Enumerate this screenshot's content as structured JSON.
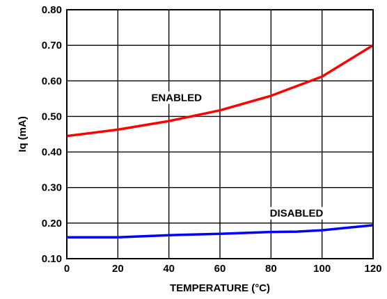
{
  "chart_data": {
    "type": "line",
    "xlabel": "TEMPERATURE (°C)",
    "ylabel": "Iq (mA)",
    "xlim": [
      0,
      120
    ],
    "ylim": [
      0.1,
      0.8
    ],
    "grid": true,
    "legend": "none",
    "x_ticks": [
      0,
      20,
      40,
      60,
      80,
      100,
      120
    ],
    "y_ticks": [
      0.1,
      0.2,
      0.3,
      0.4,
      0.5,
      0.6,
      0.7,
      0.8
    ],
    "x_tick_labels": [
      "0",
      "20",
      "40",
      "60",
      "80",
      "100",
      "120"
    ],
    "y_tick_labels": [
      "0.10",
      "0.20",
      "0.30",
      "0.40",
      "0.50",
      "0.60",
      "0.70",
      "0.80"
    ],
    "series": [
      {
        "label": "ENABLED",
        "color": "#ff0000",
        "label_at": {
          "x": 43,
          "y": 0.545
        },
        "points": [
          {
            "x": 0,
            "y": 0.445
          },
          {
            "x": 20,
            "y": 0.463
          },
          {
            "x": 40,
            "y": 0.487
          },
          {
            "x": 60,
            "y": 0.517
          },
          {
            "x": 80,
            "y": 0.558
          },
          {
            "x": 100,
            "y": 0.612
          },
          {
            "x": 120,
            "y": 0.7
          }
        ]
      },
      {
        "label": "DISABLED",
        "color": "#0000ff",
        "label_at": {
          "x": 90,
          "y": 0.22
        },
        "points": [
          {
            "x": 0,
            "y": 0.16
          },
          {
            "x": 20,
            "y": 0.16
          },
          {
            "x": 40,
            "y": 0.166
          },
          {
            "x": 60,
            "y": 0.17
          },
          {
            "x": 80,
            "y": 0.175
          },
          {
            "x": 90,
            "y": 0.176
          },
          {
            "x": 100,
            "y": 0.18
          },
          {
            "x": 120,
            "y": 0.194
          }
        ]
      }
    ]
  }
}
